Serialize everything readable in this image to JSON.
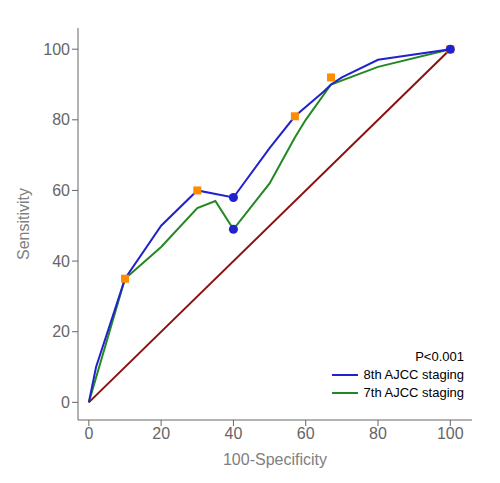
{
  "chart_data": {
    "type": "line",
    "xlabel": "100-Specificity",
    "ylabel": "Sensitivity",
    "xlim": [
      -3,
      106
    ],
    "ylim": [
      -5,
      106
    ],
    "xticks": [
      0,
      20,
      40,
      60,
      80,
      100
    ],
    "yticks": [
      0,
      20,
      40,
      60,
      80,
      100
    ],
    "grid": false,
    "legend": "lower right",
    "annotation": "P<0.001",
    "series": [
      {
        "name": "8th AJCC staging",
        "type": "line",
        "color": "#2222cc",
        "x": [
          0,
          2,
          10,
          20,
          30,
          40,
          50,
          57,
          65,
          67,
          70,
          80,
          100
        ],
        "values": [
          0,
          10,
          35,
          50,
          60,
          58,
          72,
          81,
          88,
          90,
          92,
          97,
          100
        ]
      },
      {
        "name": "7th AJCC staging",
        "type": "line",
        "color": "#228822",
        "x": [
          0,
          10,
          20,
          30,
          35,
          40,
          50,
          57,
          60,
          67,
          80,
          100
        ],
        "values": [
          0,
          35,
          44,
          55,
          57,
          49,
          62,
          75,
          80,
          90,
          95,
          100
        ]
      },
      {
        "type": "line",
        "color": "#8b1010",
        "x": [
          0,
          100
        ],
        "values": [
          0,
          100
        ]
      },
      {
        "type": "scatter",
        "marker": "square",
        "color": "#ff8c00",
        "x": [
          10,
          30,
          57,
          67,
          100
        ],
        "values": [
          35,
          60,
          81,
          92,
          100
        ]
      },
      {
        "type": "scatter",
        "marker": "circle",
        "color": "#2222cc",
        "x": [
          40,
          40,
          100
        ],
        "values": [
          58,
          49,
          100
        ]
      }
    ]
  }
}
